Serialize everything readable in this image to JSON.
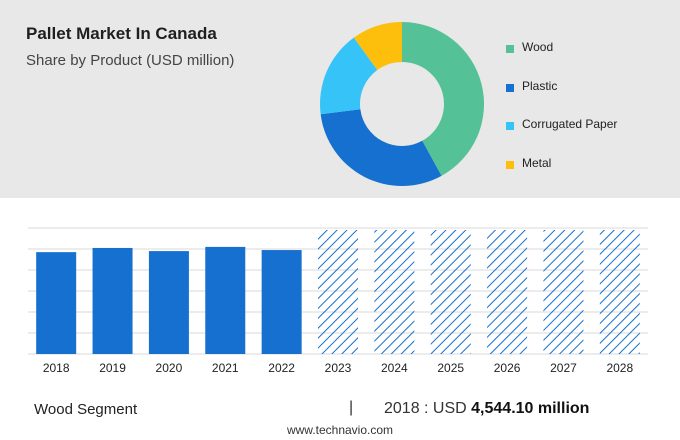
{
  "header": {
    "title": "Pallet Market In Canada",
    "subtitle": "Share by Product (USD million)"
  },
  "colors": {
    "Wood": "#55c197",
    "Plastic": "#1570cf",
    "Corrugated Paper": "#36c3f7",
    "Metal": "#fdbf0c",
    "bar": "#1570cf",
    "forecast_hatch": "#1570cf"
  },
  "chart_data": [
    {
      "type": "pie",
      "variant": "donut",
      "labels": [
        "Wood",
        "Plastic",
        "Corrugated Paper",
        "Metal"
      ],
      "values": [
        42,
        31,
        17,
        10
      ],
      "legend_position": "right"
    },
    {
      "type": "bar",
      "categories": [
        "2018",
        "2019",
        "2020",
        "2021",
        "2022",
        "2023",
        "2024",
        "2025",
        "2026",
        "2027",
        "2028"
      ],
      "values": [
        97,
        101,
        98,
        102,
        99,
        null,
        null,
        null,
        null,
        null,
        null
      ],
      "forecast_categories": [
        "2023",
        "2024",
        "2025",
        "2026",
        "2027",
        "2028"
      ],
      "forecast_style": "hatched",
      "ylim": [
        0,
        120
      ],
      "grid": true
    }
  ],
  "footer": {
    "segment": "Wood Segment",
    "separator": "|",
    "year_prefix": "2018 : USD ",
    "value": "4,544.10 million",
    "brand": "www.technavio.com"
  }
}
